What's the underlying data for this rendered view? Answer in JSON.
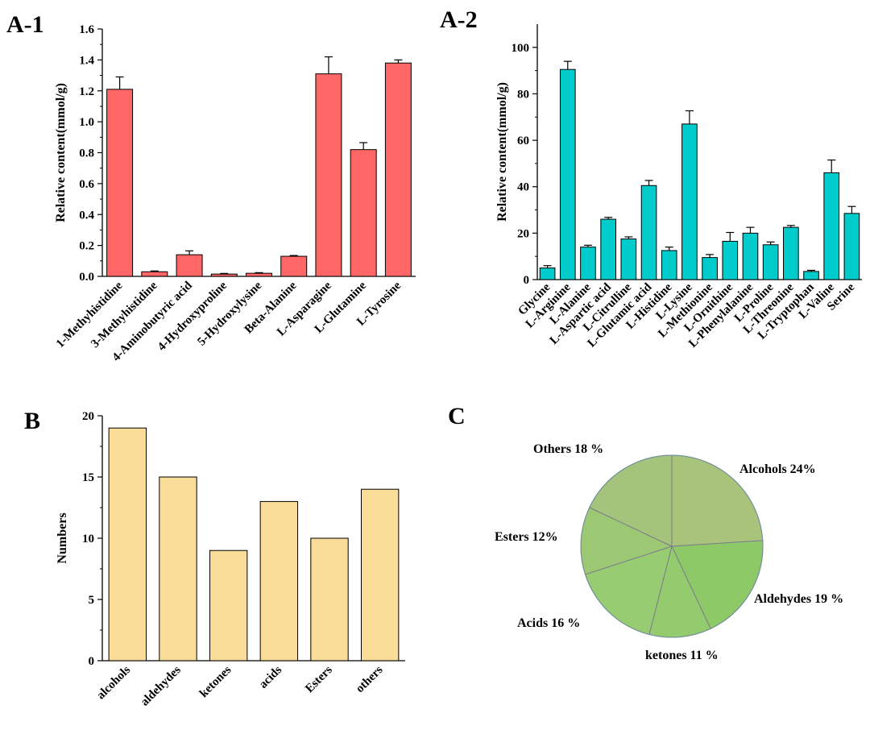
{
  "panels": {
    "a1": "A-1",
    "a2": "A-2",
    "b": "B",
    "c": "C"
  },
  "chart_data": [
    {
      "id": "A-1",
      "type": "bar",
      "ylabel": "Relative content(mmol/g)",
      "ylim": [
        0,
        1.6
      ],
      "yticks": [
        0.0,
        0.2,
        0.4,
        0.6,
        0.8,
        1.0,
        1.2,
        1.4,
        1.6
      ],
      "color": "#ff6666",
      "categories": [
        "1-Methyhistidine",
        "3-Methyhistidine",
        "4-Aminobutyric acid",
        "4-Hydroxyproline",
        "5-Hydroxylysine",
        "Beta-Alanine",
        "L-Asparagine",
        "L-Glutamine",
        "L-Tyrosine"
      ],
      "values": [
        1.21,
        0.03,
        0.14,
        0.015,
        0.02,
        0.13,
        1.31,
        0.82,
        1.38
      ],
      "errors": [
        0.08,
        0.005,
        0.025,
        0.004,
        0.004,
        0.005,
        0.11,
        0.045,
        0.02
      ]
    },
    {
      "id": "A-2",
      "type": "bar",
      "ylabel": "Relative content(mmol/g)",
      "ylim": [
        0,
        110
      ],
      "yticks": [
        0,
        20,
        40,
        60,
        80,
        100
      ],
      "color": "#00cccc",
      "categories": [
        "Glycine",
        "L-Arginine",
        "L-Alanine",
        "L-Aspartic acid",
        "L-Citrulline",
        "L-Glutamic acid",
        "L-Histidine",
        "L-Lysine",
        "L-Methionine",
        "L-Ornithine",
        "L-Phenylalanine",
        "L-Proline",
        "L-Threonine",
        "L-Tryptophan",
        "L-Valine",
        "Serine"
      ],
      "values": [
        5,
        90.5,
        14,
        26,
        17.5,
        40.5,
        12.5,
        67,
        9.5,
        16.5,
        20,
        15,
        22.5,
        3.5,
        46,
        28.5
      ],
      "errors": [
        1,
        3.5,
        0.8,
        0.8,
        0.9,
        2.2,
        1.5,
        5.7,
        1.3,
        3.8,
        2.5,
        1.2,
        0.8,
        0.5,
        5.5,
        3
      ]
    },
    {
      "id": "B",
      "type": "bar",
      "ylabel": "Numbers",
      "ylim": [
        0,
        20
      ],
      "yticks": [
        0,
        5,
        10,
        15,
        20
      ],
      "color": "#f9dc98",
      "categories": [
        "alcohols",
        "aldehydes",
        "ketones",
        "acids",
        "Esters",
        "others"
      ],
      "values": [
        19,
        15,
        9,
        13,
        10,
        14
      ]
    },
    {
      "id": "C",
      "type": "pie",
      "slices": [
        {
          "label": "Alcohols 24%",
          "value": 24,
          "color": "#a7c47a"
        },
        {
          "label": "Aldehydes 19 %",
          "value": 19,
          "color": "#8ec968"
        },
        {
          "label": "ketones 11 %",
          "value": 11,
          "color": "#93cb6e"
        },
        {
          "label": "Acids 16 %",
          "value": 16,
          "color": "#98cc72"
        },
        {
          "label": "Esters 12%",
          "value": 12,
          "color": "#9dc873"
        },
        {
          "label": "Others 18 %",
          "value": 18,
          "color": "#a4c47b"
        }
      ]
    }
  ]
}
